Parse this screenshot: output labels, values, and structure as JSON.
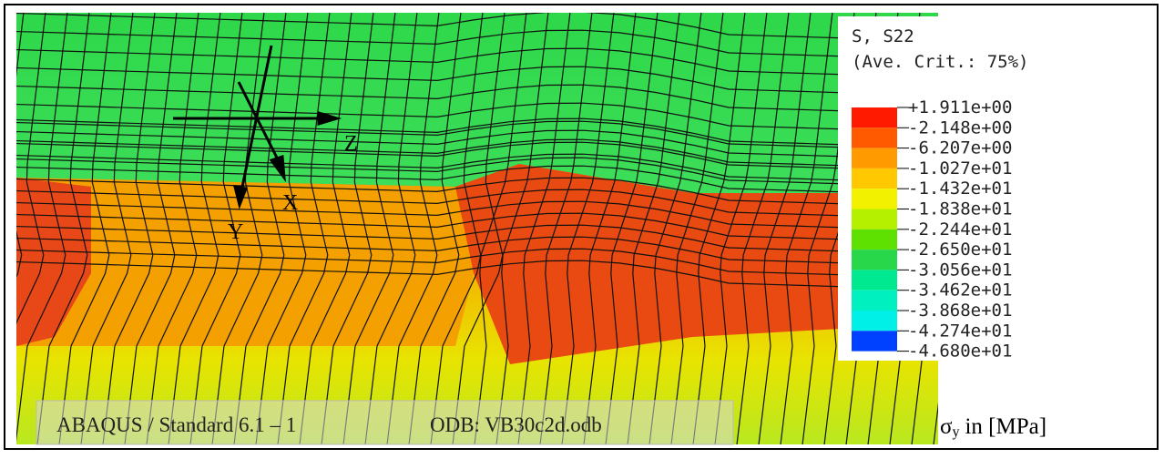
{
  "legend": {
    "title": "S, S22",
    "subtitle": "(Ave. Crit.: 75%)",
    "labels": [
      "+1.911e+00",
      "-2.148e+00",
      "-6.207e+00",
      "-1.027e+01",
      "-1.432e+01",
      "-1.838e+01",
      "-2.244e+01",
      "-2.650e+01",
      "-3.056e+01",
      "-3.462e+01",
      "-3.868e+01",
      "-4.274e+01",
      "-4.680e+01"
    ],
    "colors": [
      "#ff1a00",
      "#ff5a00",
      "#ff9a00",
      "#ffc800",
      "#f2f200",
      "#b4f000",
      "#5ee000",
      "#28d84a",
      "#00e890",
      "#00f0c0",
      "#00f0e8",
      "#0040ff"
    ]
  },
  "triad": {
    "z": "Z",
    "x": "X",
    "y": "Y"
  },
  "footer": {
    "program": "ABAQUS / Standard 6.1 – 1",
    "odb": "ODB:  VB30c2d.odb"
  },
  "caption": {
    "symbol": "σ",
    "subscript": "y",
    "text": "in [MPa]"
  }
}
